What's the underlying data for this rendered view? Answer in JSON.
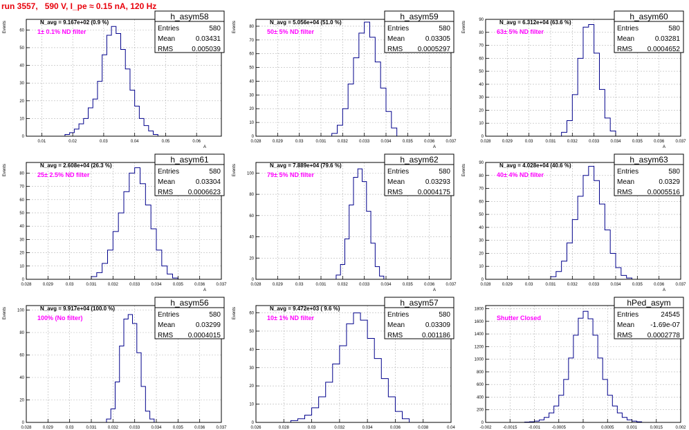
{
  "page": {
    "title": "run 3557,   590 V, I_pe ≈ 0.15 nA, 120 Hz"
  },
  "colors": {
    "title": "#e8000b",
    "annotation": "#ff00ff",
    "histogram": "#00008b",
    "grid": "#b4b4b4",
    "frame": "#000000"
  },
  "chart_data": [
    {
      "type": "bar",
      "name": "h_asym58",
      "stats": {
        "entries": "580",
        "mean": "0.03431",
        "rms": "0.005039"
      },
      "stats_labels": {
        "entries": "Entries",
        "mean": "Mean",
        "rms": "RMS"
      },
      "navg": "N_avg = 9.167e+02 (0.9 %)",
      "annotation": "1± 0.1% ND filter",
      "ylabel": "Events",
      "xlabel": "A",
      "xlim": [
        0.005,
        0.068
      ],
      "ylim": [
        0,
        66
      ],
      "xticks": [
        0.01,
        0.02,
        0.03,
        0.04,
        0.05,
        0.06
      ],
      "xticklabels": [
        "0.01",
        "0.02",
        "0.03",
        "0.04",
        "0.05",
        "0.06"
      ],
      "yticks": [
        0,
        10,
        20,
        30,
        40,
        50,
        60
      ],
      "yticklabels": [
        "0",
        "10",
        "20",
        "30",
        "40",
        "50",
        "60"
      ],
      "bins": {
        "edges": [
          0.0175,
          0.019,
          0.0205,
          0.022,
          0.0235,
          0.025,
          0.0265,
          0.028,
          0.0295,
          0.031,
          0.0325,
          0.034,
          0.0355,
          0.037,
          0.0385,
          0.04,
          0.0415,
          0.043,
          0.0445,
          0.046,
          0.0475
        ],
        "counts": [
          1,
          2,
          4,
          7,
          10,
          16,
          21,
          31,
          46,
          57,
          62,
          58,
          49,
          38,
          26,
          17,
          10,
          6,
          3,
          1
        ]
      }
    },
    {
      "type": "bar",
      "name": "h_asym59",
      "stats": {
        "entries": "580",
        "mean": "0.03305",
        "rms": "0.0005297"
      },
      "stats_labels": {
        "entries": "Entries",
        "mean": "Mean",
        "rms": "RMS"
      },
      "navg": "N_avg = 5.056e+04 (51.0 %)",
      "annotation": "50± 5% ND filter",
      "ylabel": "Events",
      "xlabel": "A",
      "xlim": [
        0.028,
        0.037
      ],
      "ylim": [
        0,
        85
      ],
      "xticks": [
        0.028,
        0.029,
        0.03,
        0.031,
        0.032,
        0.033,
        0.034,
        0.035,
        0.036,
        0.037
      ],
      "xticklabels": [
        "0.028",
        "0.029",
        "0.03",
        "0.031",
        "0.032",
        "0.033",
        "0.034",
        "0.035",
        "0.036",
        "0.037"
      ],
      "yticks": [
        0,
        10,
        20,
        30,
        40,
        50,
        60,
        70,
        80
      ],
      "yticklabels": [
        "0",
        "10",
        "20",
        "30",
        "40",
        "50",
        "60",
        "70",
        "80"
      ],
      "bins": {
        "edges": [
          0.0315,
          0.03175,
          0.032,
          0.03225,
          0.0325,
          0.03275,
          0.033,
          0.03325,
          0.0335,
          0.03375,
          0.034,
          0.03425,
          0.0345
        ],
        "counts": [
          2,
          8,
          20,
          38,
          57,
          75,
          83,
          72,
          54,
          35,
          18,
          6
        ]
      }
    },
    {
      "type": "bar",
      "name": "h_asym60",
      "stats": {
        "entries": "580",
        "mean": "0.03281",
        "rms": "0.0004652"
      },
      "stats_labels": {
        "entries": "Entries",
        "mean": "Mean",
        "rms": "RMS"
      },
      "navg": "N_avg = 6.312e+04 (63.6 %)",
      "annotation": "63± 5% ND filter",
      "ylabel": "Events",
      "xlabel": "A",
      "xlim": [
        0.028,
        0.037
      ],
      "ylim": [
        0,
        90
      ],
      "xticks": [
        0.028,
        0.029,
        0.03,
        0.031,
        0.032,
        0.033,
        0.034,
        0.035,
        0.036,
        0.037
      ],
      "xticklabels": [
        "0.028",
        "0.029",
        "0.03",
        "0.031",
        "0.032",
        "0.033",
        "0.034",
        "0.035",
        "0.036",
        "0.037"
      ],
      "yticks": [
        0,
        10,
        20,
        30,
        40,
        50,
        60,
        70,
        80,
        90
      ],
      "yticklabels": [
        "0",
        "10",
        "20",
        "30",
        "40",
        "50",
        "60",
        "70",
        "80",
        "90"
      ],
      "bins": {
        "edges": [
          0.0315,
          0.03175,
          0.032,
          0.03225,
          0.0325,
          0.03275,
          0.033,
          0.03325,
          0.0335,
          0.03375,
          0.034
        ],
        "counts": [
          3,
          12,
          32,
          60,
          84,
          86,
          64,
          36,
          14,
          4
        ]
      }
    },
    {
      "type": "bar",
      "name": "h_asym61",
      "stats": {
        "entries": "580",
        "mean": "0.03304",
        "rms": "0.0006623"
      },
      "stats_labels": {
        "entries": "Entries",
        "mean": "Mean",
        "rms": "RMS"
      },
      "navg": "N_avg = 2.608e+04 (26.3 %)",
      "annotation": "25± 2.5% ND filter",
      "ylabel": "Events",
      "xlabel": "A",
      "xlim": [
        0.028,
        0.037
      ],
      "ylim": [
        0,
        88
      ],
      "xticks": [
        0.028,
        0.029,
        0.03,
        0.031,
        0.032,
        0.033,
        0.034,
        0.035,
        0.036,
        0.037
      ],
      "xticklabels": [
        "0.028",
        "0.029",
        "0.03",
        "0.031",
        "0.032",
        "0.033",
        "0.034",
        "0.035",
        "0.036",
        "0.037"
      ],
      "yticks": [
        0,
        10,
        20,
        30,
        40,
        50,
        60,
        70,
        80
      ],
      "yticklabels": [
        "0",
        "10",
        "20",
        "30",
        "40",
        "50",
        "60",
        "70",
        "80"
      ],
      "bins": {
        "edges": [
          0.031,
          0.03125,
          0.0315,
          0.03175,
          0.032,
          0.03225,
          0.0325,
          0.03275,
          0.033,
          0.03325,
          0.0335,
          0.03375,
          0.034,
          0.03425,
          0.0345,
          0.03475,
          0.035
        ],
        "counts": [
          2,
          5,
          12,
          22,
          36,
          50,
          66,
          80,
          84,
          72,
          56,
          38,
          22,
          10,
          4,
          1
        ]
      }
    },
    {
      "type": "bar",
      "name": "h_asym62",
      "stats": {
        "entries": "580",
        "mean": "0.03293",
        "rms": "0.0004175"
      },
      "stats_labels": {
        "entries": "Entries",
        "mean": "Mean",
        "rms": "RMS"
      },
      "navg": "N_avg = 7.889e+04 (79.6 %)",
      "annotation": "79± 5% ND filter",
      "ylabel": "Events",
      "xlabel": "A",
      "xlim": [
        0.028,
        0.037
      ],
      "ylim": [
        0,
        110
      ],
      "xticks": [
        0.028,
        0.029,
        0.03,
        0.031,
        0.032,
        0.033,
        0.034,
        0.035,
        0.036,
        0.037
      ],
      "xticklabels": [
        "0.028",
        "0.029",
        "0.03",
        "0.031",
        "0.032",
        "0.033",
        "0.034",
        "0.035",
        "0.036",
        "0.037"
      ],
      "yticks": [
        0,
        20,
        40,
        60,
        80,
        100
      ],
      "yticklabels": [
        "0",
        "20",
        "40",
        "60",
        "80",
        "100"
      ],
      "bins": {
        "edges": [
          0.0317,
          0.0319,
          0.0321,
          0.0323,
          0.0325,
          0.0327,
          0.0329,
          0.0331,
          0.0333,
          0.0335,
          0.0337,
          0.0339
        ],
        "counts": [
          4,
          14,
          38,
          70,
          96,
          104,
          92,
          64,
          34,
          12,
          3
        ]
      }
    },
    {
      "type": "bar",
      "name": "h_asym63",
      "stats": {
        "entries": "580",
        "mean": "0.0329",
        "rms": "0.0005516"
      },
      "stats_labels": {
        "entries": "Entries",
        "mean": "Mean",
        "rms": "RMS"
      },
      "navg": "N_avg = 4.028e+04 (40.6 %)",
      "annotation": "40± 4% ND filter",
      "ylabel": "Events",
      "xlabel": "A",
      "xlim": [
        0.028,
        0.037
      ],
      "ylim": [
        0,
        90
      ],
      "xticks": [
        0.028,
        0.029,
        0.03,
        0.031,
        0.032,
        0.033,
        0.034,
        0.035,
        0.036,
        0.037
      ],
      "xticklabels": [
        "0.028",
        "0.029",
        "0.03",
        "0.031",
        "0.032",
        "0.033",
        "0.034",
        "0.035",
        "0.036",
        "0.037"
      ],
      "yticks": [
        0,
        10,
        20,
        30,
        40,
        50,
        60,
        70,
        80,
        90
      ],
      "yticklabels": [
        "0",
        "10",
        "20",
        "30",
        "40",
        "50",
        "60",
        "70",
        "80",
        "90"
      ],
      "bins": {
        "edges": [
          0.031,
          0.03125,
          0.0315,
          0.03175,
          0.032,
          0.03225,
          0.0325,
          0.03275,
          0.033,
          0.03325,
          0.0335,
          0.03375,
          0.034,
          0.03425,
          0.0345,
          0.03475
        ],
        "counts": [
          2,
          6,
          14,
          28,
          46,
          64,
          80,
          87,
          76,
          58,
          38,
          20,
          9,
          3,
          1
        ]
      }
    },
    {
      "type": "bar",
      "name": "h_asym56",
      "stats": {
        "entries": "580",
        "mean": "0.03299",
        "rms": "0.0004015"
      },
      "stats_labels": {
        "entries": "Entries",
        "mean": "Mean",
        "rms": "RMS"
      },
      "navg": "N_avg = 9.917e+04 (100.0 %)",
      "annotation": "100% (No filter)",
      "ylabel": "Events",
      "xlabel": "A",
      "xlim": [
        0.028,
        0.037
      ],
      "ylim": [
        0,
        104
      ],
      "xticks": [
        0.028,
        0.029,
        0.03,
        0.031,
        0.032,
        0.033,
        0.034,
        0.035,
        0.036,
        0.037
      ],
      "xticklabels": [
        "0.028",
        "0.029",
        "0.03",
        "0.031",
        "0.032",
        "0.033",
        "0.034",
        "0.035",
        "0.036",
        "0.037"
      ],
      "yticks": [
        0,
        20,
        40,
        60,
        80,
        100
      ],
      "yticklabels": [
        "0",
        "20",
        "40",
        "60",
        "80",
        "100"
      ],
      "bins": {
        "edges": [
          0.0317,
          0.0319,
          0.0321,
          0.0323,
          0.0325,
          0.0327,
          0.0329,
          0.0331,
          0.0333,
          0.0335,
          0.0337,
          0.0339
        ],
        "counts": [
          3,
          12,
          36,
          68,
          92,
          96,
          88,
          62,
          32,
          10,
          3
        ]
      }
    },
    {
      "type": "bar",
      "name": "h_asym57",
      "stats": {
        "entries": "580",
        "mean": "0.03309",
        "rms": "0.001186"
      },
      "stats_labels": {
        "entries": "Entries",
        "mean": "Mean",
        "rms": "RMS"
      },
      "navg": "N_avg = 9.472e+03 ( 9.6 %)",
      "annotation": "10± 1% ND filter",
      "ylabel": "Events",
      "xlabel": "A",
      "xlim": [
        0.026,
        0.04
      ],
      "ylim": [
        0,
        64
      ],
      "xticks": [
        0.026,
        0.028,
        0.03,
        0.032,
        0.034,
        0.036,
        0.038,
        0.04
      ],
      "xticklabels": [
        "0.026",
        "0.028",
        "0.03",
        "0.032",
        "0.034",
        "0.036",
        "0.038",
        "0.04"
      ],
      "yticks": [
        0,
        10,
        20,
        30,
        40,
        50,
        60
      ],
      "yticklabels": [
        "0",
        "10",
        "20",
        "30",
        "40",
        "50",
        "60"
      ],
      "bins": {
        "edges": [
          0.0285,
          0.029,
          0.0295,
          0.03,
          0.0305,
          0.031,
          0.0315,
          0.032,
          0.0325,
          0.033,
          0.0335,
          0.034,
          0.0345,
          0.035,
          0.0355,
          0.036,
          0.0365,
          0.037
        ],
        "counts": [
          1,
          2,
          4,
          8,
          14,
          22,
          32,
          42,
          54,
          60,
          56,
          46,
          35,
          24,
          14,
          6,
          2
        ]
      }
    },
    {
      "type": "bar",
      "name": "hPed_asym",
      "stats": {
        "entries": "24545",
        "mean": "-1.69e-07",
        "rms": "0.0002778"
      },
      "stats_labels": {
        "entries": "Entries",
        "mean": "Mean",
        "rms": "RMS"
      },
      "navg": "",
      "annotation": "Shutter Closed",
      "ylabel": "",
      "xlabel": "",
      "xlim": [
        -0.002,
        0.002
      ],
      "ylim": [
        0,
        1850
      ],
      "xticks": [
        -0.002,
        -0.0015,
        -0.001,
        -0.0005,
        0,
        0.0005,
        0.001,
        0.0015,
        0.002
      ],
      "xticklabels": [
        "-0.002",
        "-0.0015",
        "-0.001",
        "-0.0005",
        "0",
        "0.0005",
        "0.001",
        "0.0015",
        "0.002"
      ],
      "yticks": [
        0,
        200,
        400,
        600,
        800,
        1000,
        1200,
        1400,
        1600,
        1800
      ],
      "yticklabels": [
        "0",
        "200",
        "400",
        "600",
        "800",
        "1000",
        "1200",
        "1400",
        "1600",
        "1800"
      ],
      "bins": {
        "edges": [
          -0.0012,
          -0.0011,
          -0.001,
          -0.0009,
          -0.0008,
          -0.0007,
          -0.0006,
          -0.0005,
          -0.0004,
          -0.0003,
          -0.0002,
          -0.0001,
          0,
          0.0001,
          0.0002,
          0.0003,
          0.0004,
          0.0005,
          0.0006,
          0.0007,
          0.0008,
          0.0009,
          0.001,
          0.0011,
          0.0012
        ],
        "counts": [
          5,
          10,
          20,
          40,
          80,
          150,
          260,
          430,
          680,
          1020,
          1380,
          1650,
          1760,
          1640,
          1380,
          1020,
          680,
          430,
          260,
          150,
          80,
          40,
          20,
          10
        ]
      }
    }
  ]
}
